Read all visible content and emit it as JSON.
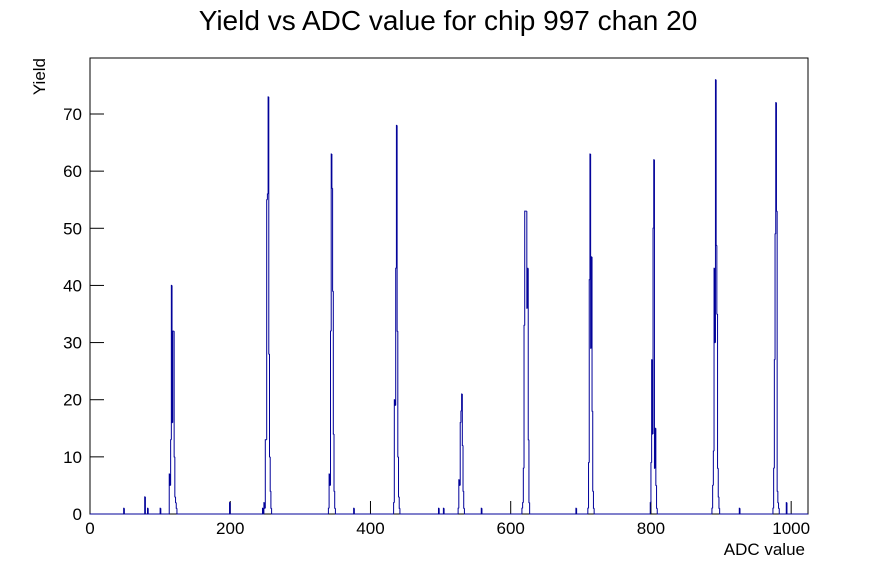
{
  "chart_data": {
    "type": "histogram",
    "title": "Yield vs ADC value for chip 997 chan 20",
    "x_label": "ADC value",
    "y_label": "Yield",
    "color": "#000099",
    "xlim": [
      0,
      1024
    ],
    "ylim": [
      0,
      79.8
    ],
    "xticks": [
      0,
      200,
      400,
      600,
      800,
      1000
    ],
    "yticks": [
      0,
      10,
      20,
      30,
      40,
      50,
      60,
      70
    ],
    "bins": [
      0,
      48,
      49,
      78,
      79,
      82,
      83,
      100,
      101,
      113,
      114,
      115,
      116,
      117,
      118,
      119,
      120,
      121,
      122,
      123,
      124,
      199,
      200,
      246,
      247,
      248,
      249,
      250,
      251,
      252,
      253,
      254,
      255,
      256,
      257,
      258,
      259,
      340,
      341,
      342,
      343,
      344,
      345,
      346,
      347,
      348,
      349,
      350,
      376,
      377,
      433,
      434,
      435,
      436,
      437,
      438,
      439,
      440,
      441,
      442,
      497,
      498,
      504,
      505,
      525,
      526,
      527,
      528,
      529,
      530,
      531,
      532,
      533,
      534,
      558,
      559,
      616,
      617,
      618,
      619,
      620,
      621,
      622,
      623,
      624,
      625,
      626,
      627,
      693,
      694,
      710,
      711,
      712,
      713,
      714,
      715,
      716,
      717,
      718,
      719,
      799,
      800,
      801,
      802,
      803,
      804,
      805,
      806,
      807,
      808,
      809,
      887,
      888,
      889,
      890,
      891,
      892,
      893,
      894,
      895,
      896,
      897,
      898,
      926,
      927,
      974,
      975,
      976,
      977,
      978,
      979,
      980,
      981,
      982,
      983,
      993,
      994,
      1024
    ],
    "counts": [
      0,
      1,
      0,
      3,
      0,
      1,
      0,
      1,
      0,
      7,
      5,
      13,
      40,
      16,
      32,
      32,
      10,
      3,
      2,
      1,
      0,
      2,
      0,
      1,
      0,
      2,
      1,
      13,
      13,
      55,
      56,
      73,
      28,
      10,
      4,
      1,
      0,
      1,
      7,
      5,
      32,
      63,
      57,
      39,
      14,
      4,
      1,
      0,
      1,
      0,
      2,
      20,
      19,
      43,
      68,
      32,
      10,
      3,
      1,
      0,
      1,
      0,
      1,
      0,
      1,
      6,
      5,
      16,
      18,
      21,
      12,
      4,
      1,
      0,
      1,
      0,
      1,
      2,
      8,
      33,
      53,
      53,
      53,
      36,
      43,
      13,
      2,
      0,
      1,
      0,
      1,
      9,
      41,
      63,
      29,
      45,
      18,
      4,
      1,
      0,
      2,
      9,
      27,
      14,
      50,
      62,
      8,
      15,
      5,
      1,
      0,
      1,
      5,
      11,
      43,
      30,
      76,
      47,
      35,
      8,
      3,
      1,
      0,
      1,
      0,
      1,
      8,
      27,
      49,
      72,
      53,
      4,
      2,
      1,
      0,
      2,
      0
    ]
  }
}
